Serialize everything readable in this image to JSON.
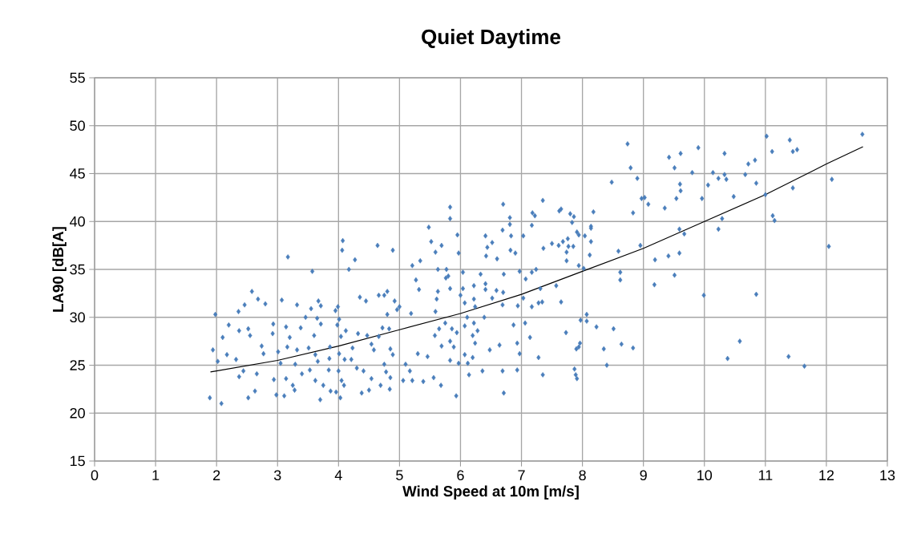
{
  "chart_data": {
    "type": "scatter",
    "title": "Quiet Daytime",
    "xlabel": "Wind Speed at 10m [m/s]",
    "ylabel": "LA90 [dB[A]",
    "xlim": [
      0,
      13
    ],
    "ylim": [
      15,
      55
    ],
    "xticks": [
      0,
      1,
      2,
      3,
      4,
      5,
      6,
      7,
      8,
      9,
      10,
      11,
      12,
      13
    ],
    "yticks": [
      15,
      20,
      25,
      30,
      35,
      40,
      45,
      50,
      55
    ],
    "grid": true,
    "series": [
      {
        "marker": "diamond",
        "color": "#4a7ebb",
        "x": [
          1.89,
          2.08,
          1.98,
          1.94,
          2.02,
          2.1,
          2.17,
          2.2,
          2.32,
          2.37,
          2.36,
          2.46,
          2.58,
          2.52,
          2.55,
          2.68,
          2.8,
          2.63,
          2.52,
          2.74,
          2.77,
          2.66,
          2.37,
          2.44,
          2.92,
          2.93,
          3.07,
          3.17,
          2.98,
          3.11,
          3.01,
          3.05,
          2.94,
          3.14,
          3.25,
          3.28,
          3.16,
          3.2,
          3.14,
          3.32,
          3.38,
          3.32,
          3.29,
          3.4,
          3.46,
          3.57,
          3.55,
          3.67,
          3.71,
          3.65,
          3.71,
          3.6,
          3.51,
          3.62,
          3.66,
          3.53,
          3.62,
          3.7,
          3.75,
          3.87,
          3.84,
          3.85,
          3.86,
          3.95,
          3.99,
          4.07,
          4.06,
          4.01,
          3.98,
          4.04,
          4.12,
          4.01,
          4.1,
          4.0,
          4.05,
          4.09,
          4.03,
          3.96,
          4.17,
          4.27,
          4.35,
          4.45,
          4.23,
          4.21,
          4.32,
          4.3,
          4.41,
          4.38,
          4.5,
          4.54,
          4.47,
          4.54,
          4.58,
          4.64,
          4.66,
          4.75,
          4.8,
          4.92,
          4.66,
          4.72,
          4.8,
          4.89,
          4.83,
          4.85,
          4.89,
          4.75,
          4.78,
          4.85,
          4.84,
          4.69,
          4.96,
          5.0,
          5.1,
          5.06,
          5.17,
          5.21,
          5.27,
          5.32,
          5.34,
          5.3,
          5.21,
          5.19,
          5.39,
          5.46,
          5.48,
          5.52,
          5.59,
          5.61,
          5.59,
          5.58,
          5.56,
          5.63,
          5.83,
          5.83,
          5.95,
          5.97,
          5.69,
          5.77,
          5.76,
          5.8,
          5.83,
          5.63,
          6.04,
          6.04,
          6.0,
          6.07,
          6.22,
          6.22,
          6.24,
          6.33,
          6.41,
          6.44,
          6.52,
          6.42,
          6.6,
          6.41,
          6.41,
          6.59,
          6.52,
          6.7,
          6.69,
          6.71,
          6.7,
          6.69,
          6.81,
          6.81,
          6.83,
          6.82,
          6.9,
          6.97,
          7.03,
          7.07,
          7.03,
          6.94,
          6.87,
          7.06,
          7.14,
          6.93,
          6.97,
          6.93,
          6.69,
          6.71,
          6.48,
          6.64,
          6.36,
          6.14,
          5.93,
          5.68,
          5.69,
          5.89,
          5.83,
          5.83,
          5.97,
          6.07,
          6.2,
          6.12,
          6.24,
          6.2,
          6.28,
          6.07,
          5.94,
          5.86,
          5.75,
          5.65,
          6.11,
          6.22,
          6.39,
          7.18,
          7.22,
          7.17,
          7.35,
          7.36,
          7.24,
          7.17,
          7.31,
          7.28,
          7.17,
          7.34,
          7.28,
          7.35,
          7.5,
          7.61,
          7.62,
          7.65,
          7.68,
          7.76,
          7.77,
          7.85,
          7.74,
          7.74,
          7.8,
          7.86,
          7.83,
          7.91,
          7.94,
          7.94,
          8.02,
          8.04,
          8.14,
          8.14,
          8.14,
          8.18,
          8.12,
          7.57,
          7.65,
          7.73,
          7.97,
          8.07,
          8.07,
          8.23,
          7.96,
          7.94,
          7.9,
          7.87,
          7.89,
          7.91,
          8.4,
          8.35,
          8.51,
          8.64,
          8.83,
          8.59,
          8.62,
          8.62,
          8.95,
          8.83,
          8.97,
          9.02,
          9.08,
          9.19,
          9.18,
          9.35,
          9.41,
          8.74,
          8.79,
          8.48,
          8.9,
          9.42,
          9.51,
          9.61,
          9.6,
          9.61,
          9.54,
          9.9,
          9.8,
          9.96,
          10.06,
          10.14,
          10.23,
          10.33,
          10.33,
          10.36,
          10.48,
          10.29,
          10.23,
          9.59,
          9.67,
          9.59,
          9.51,
          9.99,
          10.85,
          10.58,
          10.38,
          10.67,
          10.72,
          10.83,
          10.85,
          11.02,
          11.11,
          11.12,
          11.15,
          11.0,
          11.4,
          11.45,
          11.52,
          11.45,
          11.38,
          11.64,
          12.04,
          12.09,
          12.59
        ],
        "values": [
          21.6,
          21.0,
          30.3,
          26.6,
          25.4,
          27.9,
          26.1,
          29.2,
          25.6,
          28.6,
          30.6,
          31.3,
          32.7,
          28.8,
          28.1,
          31.9,
          31.4,
          22.3,
          21.6,
          27.0,
          26.2,
          24.1,
          23.8,
          24.4,
          28.3,
          29.3,
          31.8,
          36.3,
          21.9,
          21.8,
          26.4,
          25.2,
          23.5,
          23.6,
          22.9,
          22.4,
          26.9,
          27.9,
          29.0,
          31.3,
          28.9,
          26.6,
          25.1,
          24.1,
          30.0,
          34.8,
          30.9,
          31.7,
          31.2,
          29.9,
          29.3,
          28.1,
          26.8,
          26.1,
          25.4,
          24.5,
          23.4,
          21.4,
          22.9,
          22.3,
          24.5,
          25.7,
          26.9,
          30.7,
          31.1,
          38.0,
          37.0,
          29.8,
          29.2,
          28.0,
          28.6,
          26.2,
          25.6,
          24.4,
          23.4,
          22.9,
          21.6,
          22.2,
          35.0,
          36.0,
          32.1,
          31.7,
          26.8,
          25.6,
          28.3,
          24.7,
          24.4,
          22.1,
          22.4,
          23.6,
          28.1,
          27.2,
          26.6,
          37.5,
          32.3,
          32.3,
          32.7,
          31.7,
          28.0,
          28.9,
          30.3,
          37.0,
          28.8,
          26.7,
          26.1,
          25.1,
          24.3,
          23.7,
          22.5,
          22.9,
          30.8,
          31.1,
          25.1,
          23.4,
          24.4,
          35.4,
          33.9,
          32.9,
          35.9,
          26.2,
          23.4,
          30.4,
          23.3,
          25.9,
          39.4,
          37.9,
          36.8,
          31.9,
          30.6,
          28.1,
          23.7,
          35.0,
          41.5,
          40.3,
          38.6,
          36.7,
          37.5,
          35.0,
          34.1,
          34.3,
          33.0,
          32.7,
          34.7,
          33.0,
          32.3,
          31.5,
          33.3,
          31.9,
          31.1,
          34.5,
          38.5,
          37.3,
          37.8,
          36.4,
          36.1,
          33.5,
          32.9,
          32.8,
          32.0,
          32.6,
          31.3,
          34.5,
          41.8,
          39.1,
          40.4,
          39.7,
          38.5,
          37.0,
          36.7,
          34.8,
          38.5,
          34.0,
          32.0,
          31.2,
          29.2,
          29.4,
          27.9,
          27.3,
          26.2,
          24.5,
          24.4,
          22.1,
          26.6,
          27.1,
          24.4,
          24.0,
          21.8,
          22.9,
          27.0,
          26.9,
          27.5,
          25.5,
          25.2,
          26.1,
          25.8,
          25.2,
          27.3,
          28.1,
          28.6,
          29.1,
          28.4,
          28.8,
          29.4,
          28.8,
          30.0,
          29.4,
          30.0,
          40.9,
          40.6,
          39.6,
          42.2,
          37.2,
          35.0,
          34.7,
          33.0,
          31.5,
          31.1,
          31.6,
          25.8,
          24.0,
          37.7,
          37.5,
          41.1,
          41.3,
          37.9,
          38.2,
          37.4,
          37.4,
          36.8,
          35.9,
          40.8,
          40.5,
          39.9,
          38.9,
          38.6,
          35.4,
          35.1,
          38.5,
          39.5,
          39.3,
          37.9,
          41.0,
          36.5,
          33.3,
          31.6,
          28.4,
          29.7,
          30.3,
          29.6,
          29.0,
          27.3,
          26.9,
          26.7,
          24.6,
          24.0,
          23.6,
          25.0,
          26.7,
          28.8,
          27.2,
          26.8,
          36.9,
          34.7,
          33.9,
          37.5,
          40.9,
          42.4,
          42.5,
          41.8,
          36.0,
          33.4,
          41.4,
          36.4,
          48.1,
          45.6,
          44.1,
          44.5,
          46.7,
          45.6,
          47.1,
          43.9,
          43.2,
          42.4,
          47.7,
          45.1,
          42.4,
          43.8,
          45.1,
          44.5,
          47.1,
          44.9,
          44.4,
          42.6,
          40.3,
          39.2,
          39.2,
          38.7,
          36.7,
          34.4,
          32.3,
          32.4,
          27.5,
          25.7,
          44.9,
          46.0,
          46.4,
          44.0,
          48.9,
          47.3,
          40.6,
          40.1,
          42.8,
          48.5,
          47.3,
          47.5,
          43.5,
          25.9,
          24.9,
          37.4,
          44.4,
          49.1
        ]
      },
      {
        "type": "line",
        "marker": "none",
        "color": "#000000",
        "x": [
          1.9,
          2,
          3,
          4,
          5,
          6,
          7,
          8,
          9,
          10,
          11,
          12,
          12.6
        ],
        "values": [
          24.3,
          24.4,
          25.5,
          27.0,
          28.7,
          30.4,
          32.4,
          34.8,
          37.2,
          40.0,
          42.8,
          46.0,
          47.8
        ]
      }
    ]
  }
}
